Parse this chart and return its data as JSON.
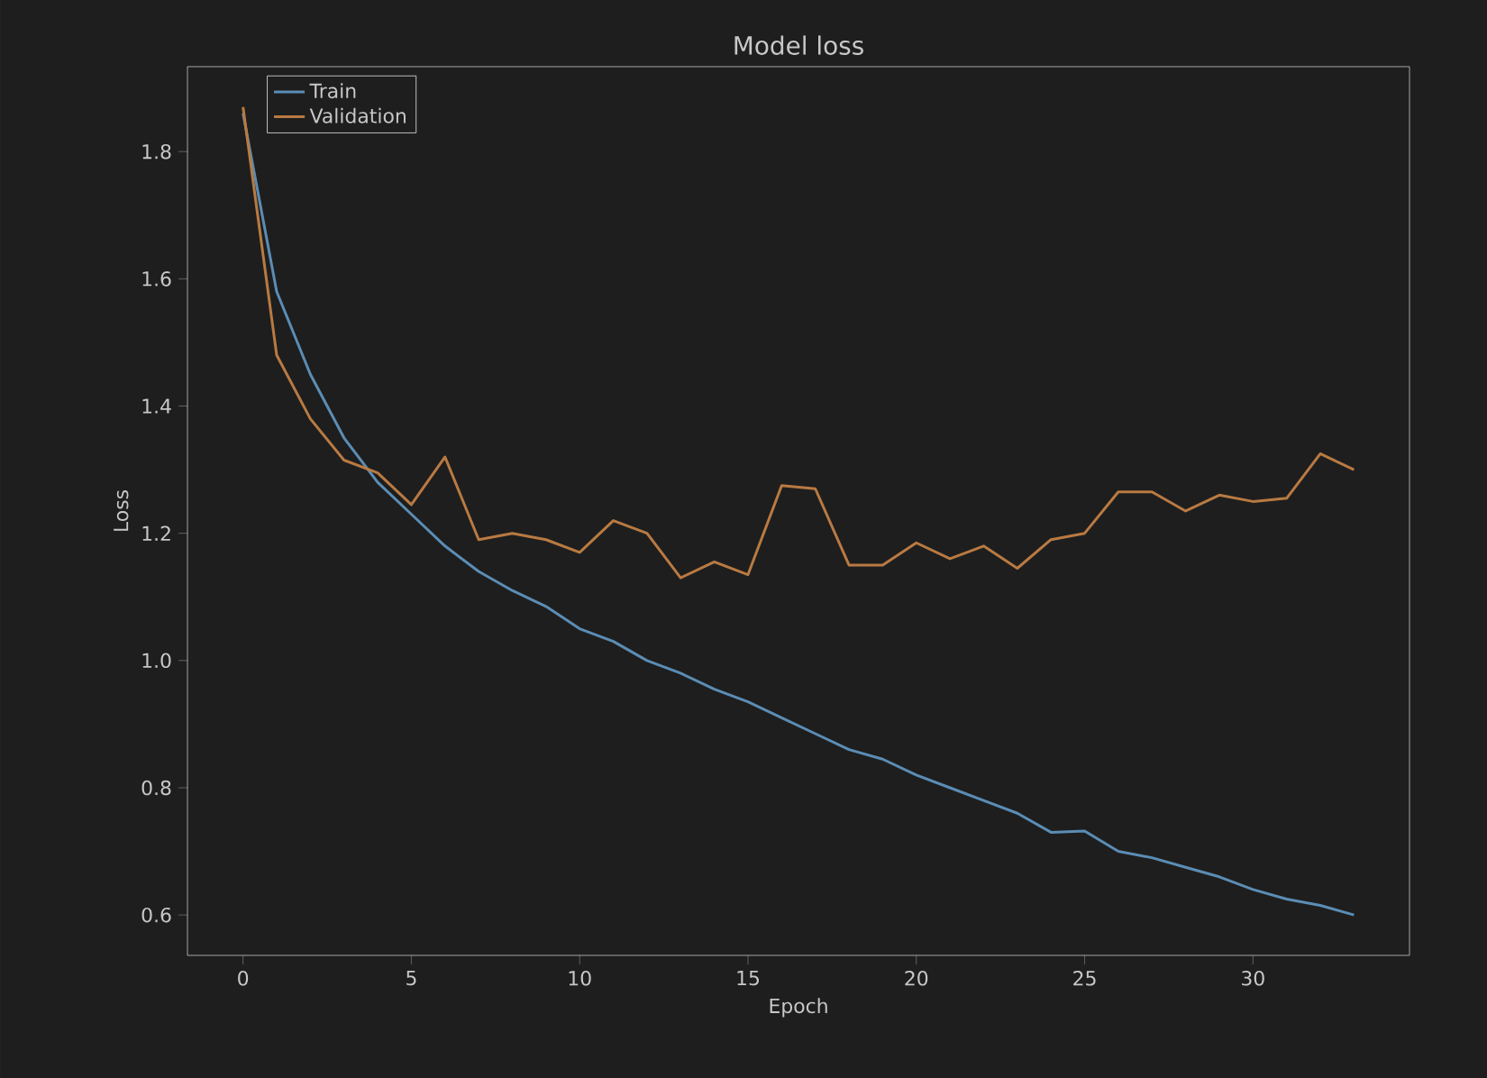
{
  "chart_data": {
    "type": "line",
    "title": "Model loss",
    "xlabel": "Epoch",
    "ylabel": "Loss",
    "x": [
      0,
      1,
      2,
      3,
      4,
      5,
      6,
      7,
      8,
      9,
      10,
      11,
      12,
      13,
      14,
      15,
      16,
      17,
      18,
      19,
      20,
      21,
      22,
      23,
      24,
      25,
      26,
      27,
      28,
      29,
      30,
      31,
      32,
      33
    ],
    "series": [
      {
        "name": "Train",
        "color": "#5b8db5",
        "values": [
          1.86,
          1.58,
          1.45,
          1.35,
          1.28,
          1.23,
          1.18,
          1.14,
          1.11,
          1.085,
          1.05,
          1.03,
          1.0,
          0.98,
          0.955,
          0.935,
          0.91,
          0.885,
          0.86,
          0.845,
          0.82,
          0.8,
          0.78,
          0.76,
          0.73,
          0.732,
          0.7,
          0.69,
          0.675,
          0.66,
          0.64,
          0.625,
          0.615,
          0.6
        ]
      },
      {
        "name": "Validation",
        "color": "#b97a42",
        "values": [
          1.87,
          1.48,
          1.38,
          1.315,
          1.295,
          1.245,
          1.32,
          1.19,
          1.2,
          1.19,
          1.17,
          1.22,
          1.2,
          1.13,
          1.155,
          1.135,
          1.275,
          1.27,
          1.15,
          1.15,
          1.185,
          1.16,
          1.18,
          1.145,
          1.19,
          1.2,
          1.265,
          1.265,
          1.235,
          1.26,
          1.25,
          1.255,
          1.325,
          1.3
        ]
      }
    ],
    "xlim": [
      -1.65,
      34.65
    ],
    "ylim": [
      0.5365,
      1.9335
    ],
    "xticks": [
      0,
      5,
      10,
      15,
      20,
      25,
      30
    ],
    "yticks": [
      0.6,
      0.8,
      {
        "value": 1.0,
        "label": "1.0"
      },
      1.2,
      1.4,
      1.6,
      1.8
    ],
    "grid": false,
    "legend": "top left",
    "marker": "none",
    "line_style": "solid"
  }
}
